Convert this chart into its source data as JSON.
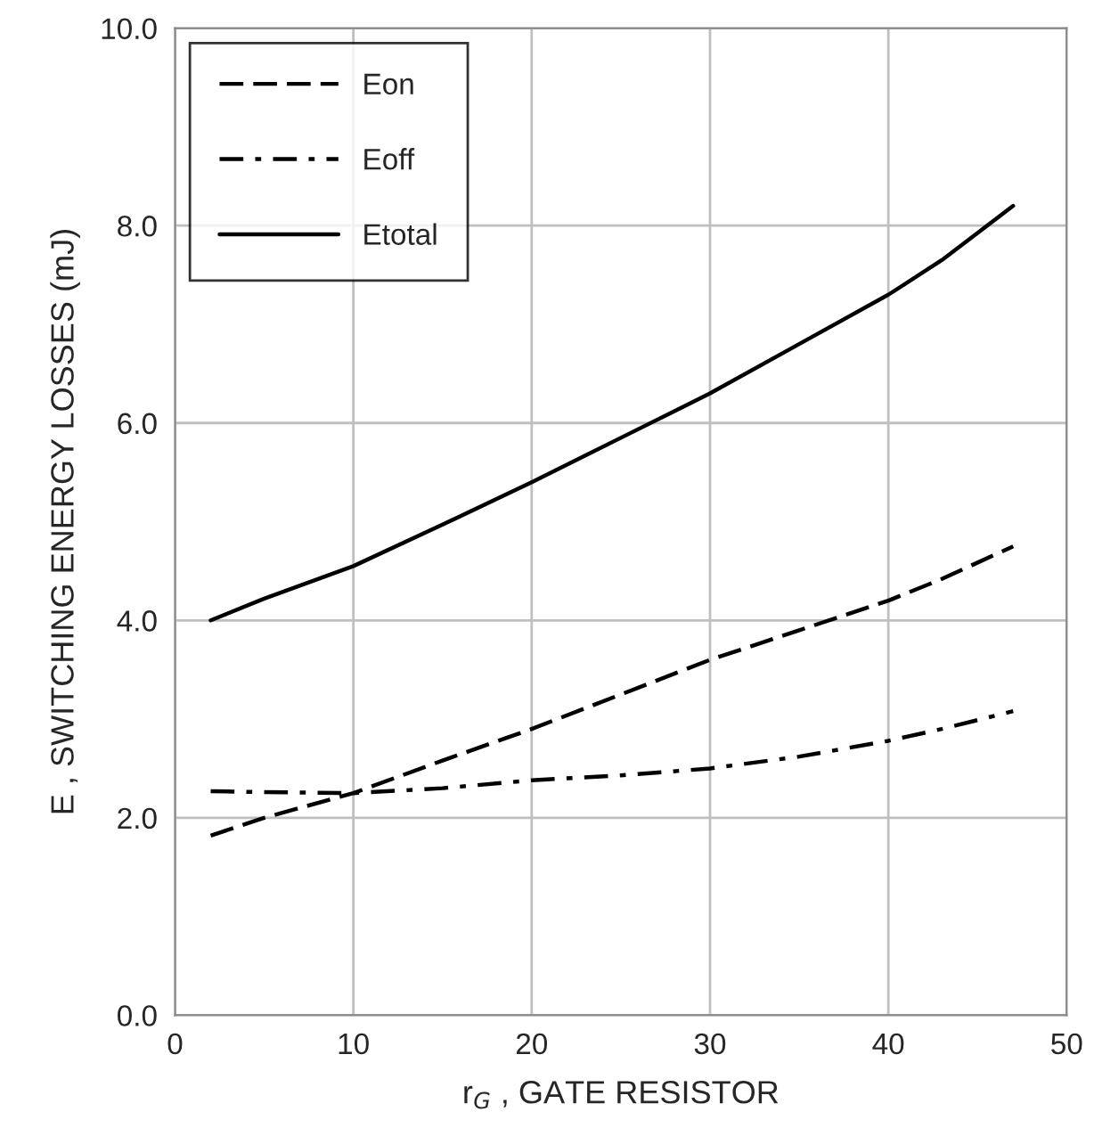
{
  "chart_data": {
    "type": "line",
    "xlabel": "r$_{G}$ , GATE RESISTOR",
    "ylabel": "E , SWITCHING ENERGY LOSSES (mJ)",
    "x": [
      2,
      5,
      10,
      15,
      20,
      25,
      30,
      35,
      40,
      43,
      47
    ],
    "series": [
      {
        "name": "Eon",
        "color": "#000000",
        "line_style": "dashed",
        "values": [
          1.82,
          2.0,
          2.25,
          2.58,
          2.9,
          3.25,
          3.6,
          3.9,
          4.2,
          4.42,
          4.75
        ]
      },
      {
        "name": "Eoff",
        "color": "#000000",
        "line_style": "dashdot",
        "values": [
          2.27,
          2.26,
          2.25,
          2.3,
          2.38,
          2.43,
          2.5,
          2.62,
          2.78,
          2.9,
          3.08
        ]
      },
      {
        "name": "Etotal",
        "color": "#000000",
        "line_style": "solid",
        "values": [
          4.0,
          4.22,
          4.55,
          4.97,
          5.4,
          5.85,
          6.3,
          6.8,
          7.3,
          7.65,
          8.2
        ]
      }
    ],
    "xlim": [
      0,
      50
    ],
    "xticks": [
      0,
      10,
      20,
      30,
      40,
      50
    ],
    "ylim": [
      0,
      10
    ],
    "yticks": [
      {
        "value": 0,
        "label": "0.0"
      },
      {
        "value": 2,
        "label": "2.0"
      },
      {
        "value": 4,
        "label": "4.0"
      },
      {
        "value": 6,
        "label": "6.0"
      },
      {
        "value": 8,
        "label": "8.0"
      },
      {
        "value": 10,
        "label": "10.0"
      }
    ],
    "grid": true,
    "legend": "top left",
    "marker": "none"
  }
}
